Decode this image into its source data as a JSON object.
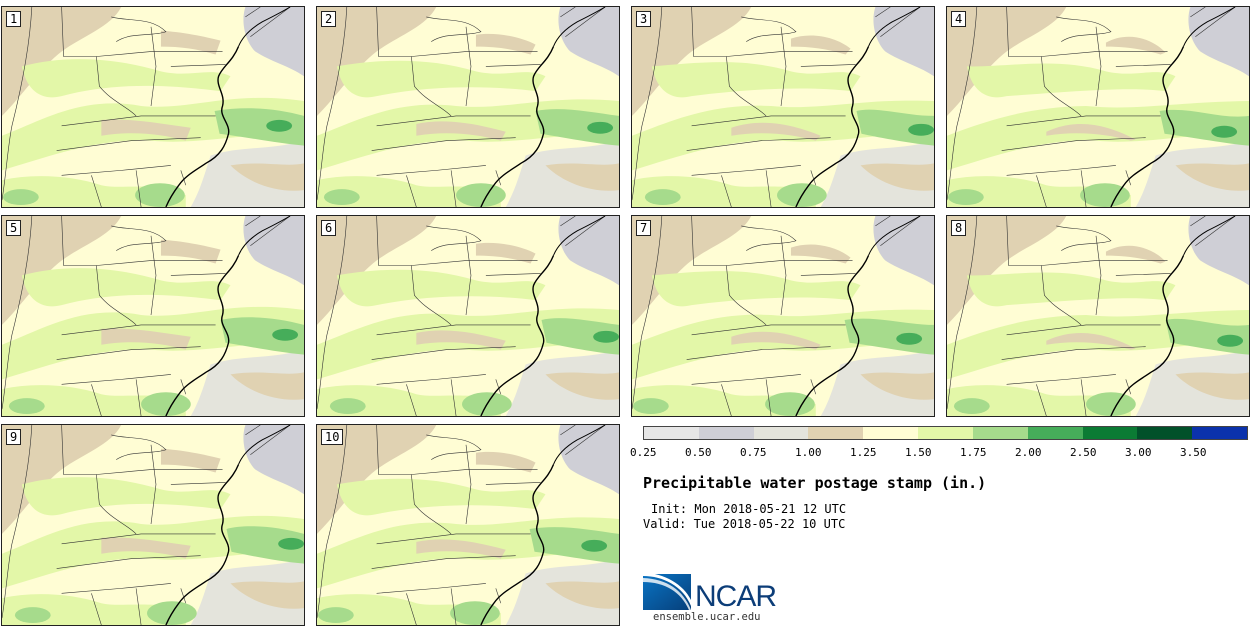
{
  "stamps": [
    {
      "label": "1"
    },
    {
      "label": "2"
    },
    {
      "label": "3"
    },
    {
      "label": "4"
    },
    {
      "label": "5"
    },
    {
      "label": "6"
    },
    {
      "label": "7"
    },
    {
      "label": "8"
    },
    {
      "label": "9"
    },
    {
      "label": "10"
    }
  ],
  "colorbar": {
    "ticks": [
      "0.25",
      "0.50",
      "0.75",
      "1.00",
      "1.25",
      "1.50",
      "1.75",
      "2.00",
      "2.50",
      "3.00",
      "3.50"
    ],
    "colors": [
      "#e6e6e6",
      "#cfcfd6",
      "#e4e4dc",
      "#e0d2b2",
      "#fffdd4",
      "#e3f7a8",
      "#a6db8c",
      "#46ad5a",
      "#0b7b34",
      "#01512a",
      "#0b32ac"
    ]
  },
  "title": "Precipitable water postage stamp (in.)",
  "init": "Init: Mon 2018-05-21 12 UTC",
  "valid": "Valid: Tue 2018-05-22 10 UTC",
  "logo": {
    "text": "NCAR",
    "url": "ensemble.ucar.edu"
  }
}
